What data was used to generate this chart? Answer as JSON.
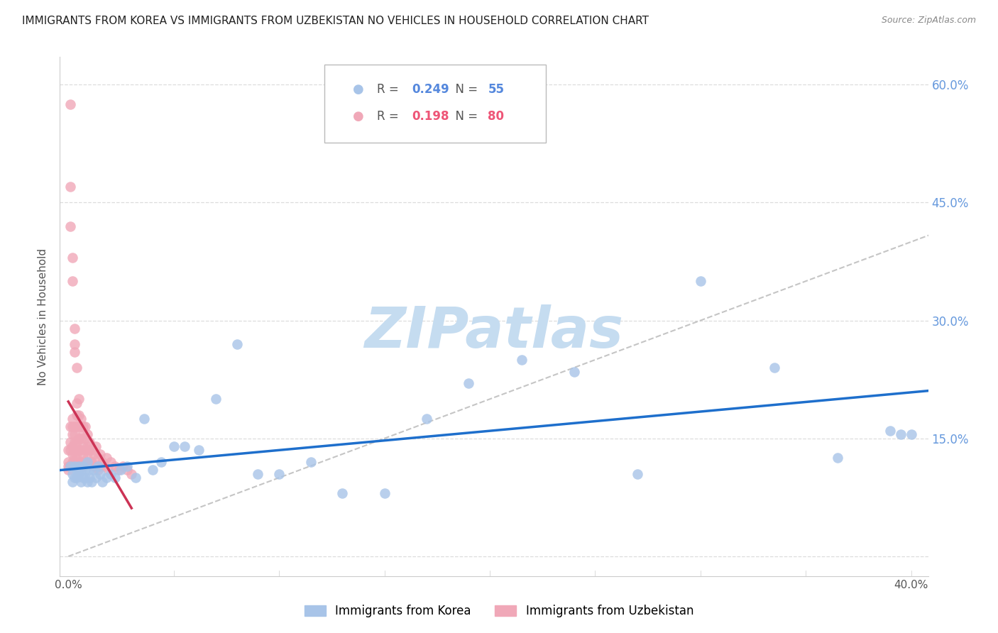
{
  "title": "IMMIGRANTS FROM KOREA VS IMMIGRANTS FROM UZBEKISTAN NO VEHICLES IN HOUSEHOLD CORRELATION CHART",
  "source": "Source: ZipAtlas.com",
  "ylabel": "No Vehicles in Household",
  "legend_korea": "Immigrants from Korea",
  "legend_uzbekistan": "Immigrants from Uzbekistan",
  "R_korea": "0.249",
  "N_korea": "55",
  "R_uzbekistan": "0.198",
  "N_uzbekistan": "80",
  "korea_color": "#A8C4E8",
  "uzbekistan_color": "#F0A8B8",
  "korea_line_color": "#1E6FCC",
  "uzbekistan_line_color": "#CC3355",
  "diagonal_color": "#BBBBBB",
  "background_color": "#FFFFFF",
  "grid_color": "#DDDDDD",
  "watermark_text": "ZIPatlas",
  "watermark_color": "#C5DCF0",
  "xlim": [
    -0.004,
    0.408
  ],
  "ylim": [
    -0.025,
    0.635
  ],
  "ytick_positions": [
    0.0,
    0.15,
    0.3,
    0.45,
    0.6
  ],
  "xtick_positions": [
    0.0,
    0.1,
    0.2,
    0.3,
    0.4
  ],
  "korea_x": [
    0.001,
    0.002,
    0.002,
    0.003,
    0.003,
    0.004,
    0.004,
    0.005,
    0.005,
    0.006,
    0.006,
    0.007,
    0.007,
    0.008,
    0.008,
    0.009,
    0.009,
    0.01,
    0.01,
    0.011,
    0.012,
    0.013,
    0.014,
    0.015,
    0.016,
    0.018,
    0.02,
    0.022,
    0.025,
    0.028,
    0.032,
    0.036,
    0.04,
    0.044,
    0.05,
    0.055,
    0.062,
    0.07,
    0.08,
    0.09,
    0.1,
    0.115,
    0.13,
    0.15,
    0.17,
    0.19,
    0.215,
    0.24,
    0.27,
    0.3,
    0.335,
    0.365,
    0.39,
    0.4,
    0.395
  ],
  "korea_y": [
    0.115,
    0.105,
    0.095,
    0.115,
    0.1,
    0.1,
    0.11,
    0.105,
    0.115,
    0.095,
    0.11,
    0.115,
    0.1,
    0.1,
    0.11,
    0.095,
    0.12,
    0.1,
    0.11,
    0.095,
    0.11,
    0.1,
    0.115,
    0.105,
    0.095,
    0.1,
    0.105,
    0.1,
    0.11,
    0.115,
    0.1,
    0.175,
    0.11,
    0.12,
    0.14,
    0.14,
    0.135,
    0.2,
    0.27,
    0.105,
    0.105,
    0.12,
    0.08,
    0.08,
    0.175,
    0.22,
    0.25,
    0.235,
    0.105,
    0.35,
    0.24,
    0.125,
    0.16,
    0.155,
    0.155
  ],
  "uzbekistan_x": [
    0.0,
    0.0,
    0.0,
    0.0,
    0.001,
    0.001,
    0.001,
    0.001,
    0.001,
    0.001,
    0.001,
    0.002,
    0.002,
    0.002,
    0.002,
    0.002,
    0.002,
    0.002,
    0.002,
    0.003,
    0.003,
    0.003,
    0.003,
    0.003,
    0.003,
    0.003,
    0.003,
    0.003,
    0.004,
    0.004,
    0.004,
    0.004,
    0.004,
    0.004,
    0.005,
    0.005,
    0.005,
    0.005,
    0.005,
    0.005,
    0.006,
    0.006,
    0.006,
    0.006,
    0.006,
    0.007,
    0.007,
    0.007,
    0.007,
    0.007,
    0.008,
    0.008,
    0.008,
    0.008,
    0.009,
    0.009,
    0.009,
    0.01,
    0.01,
    0.01,
    0.011,
    0.011,
    0.012,
    0.012,
    0.013,
    0.013,
    0.014,
    0.014,
    0.015,
    0.015,
    0.016,
    0.017,
    0.018,
    0.019,
    0.02,
    0.022,
    0.024,
    0.026,
    0.028,
    0.03
  ],
  "uzbekistan_y": [
    0.135,
    0.12,
    0.115,
    0.11,
    0.575,
    0.47,
    0.42,
    0.165,
    0.145,
    0.135,
    0.115,
    0.38,
    0.35,
    0.175,
    0.165,
    0.155,
    0.14,
    0.13,
    0.12,
    0.29,
    0.27,
    0.26,
    0.165,
    0.155,
    0.145,
    0.135,
    0.125,
    0.115,
    0.24,
    0.195,
    0.18,
    0.165,
    0.145,
    0.125,
    0.2,
    0.18,
    0.165,
    0.15,
    0.135,
    0.12,
    0.175,
    0.165,
    0.15,
    0.135,
    0.12,
    0.165,
    0.155,
    0.14,
    0.13,
    0.115,
    0.165,
    0.15,
    0.135,
    0.12,
    0.155,
    0.14,
    0.125,
    0.145,
    0.135,
    0.12,
    0.135,
    0.12,
    0.13,
    0.115,
    0.14,
    0.115,
    0.125,
    0.11,
    0.13,
    0.115,
    0.12,
    0.115,
    0.125,
    0.11,
    0.12,
    0.115,
    0.11,
    0.115,
    0.11,
    0.105
  ]
}
